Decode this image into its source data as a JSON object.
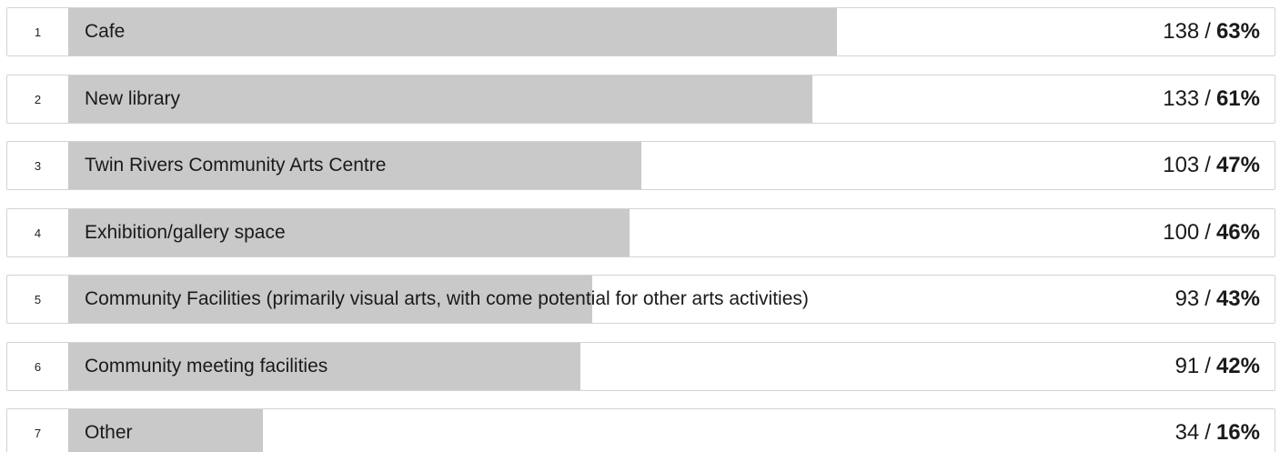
{
  "chart_data": {
    "type": "bar",
    "orientation": "horizontal",
    "bar_color": "#c9c9c9",
    "items": [
      {
        "rank": "1",
        "label": "Cafe",
        "count": "138",
        "percent": "63%",
        "value": 63
      },
      {
        "rank": "2",
        "label": "New library",
        "count": "133",
        "percent": "61%",
        "value": 61
      },
      {
        "rank": "3",
        "label": "Twin Rivers Community Arts Centre",
        "count": "103",
        "percent": "47%",
        "value": 47
      },
      {
        "rank": "4",
        "label": "Exhibition/gallery space",
        "count": "100",
        "percent": "46%",
        "value": 46
      },
      {
        "rank": "5",
        "label": "Community Facilities (primarily visual arts, with come potential for other arts activities)",
        "count": "93",
        "percent": "43%",
        "value": 43
      },
      {
        "rank": "6",
        "label": "Community meeting facilities",
        "count": "91",
        "percent": "42%",
        "value": 42
      },
      {
        "rank": "7",
        "label": "Other",
        "count": "34",
        "percent": "16%",
        "value": 16
      }
    ]
  }
}
